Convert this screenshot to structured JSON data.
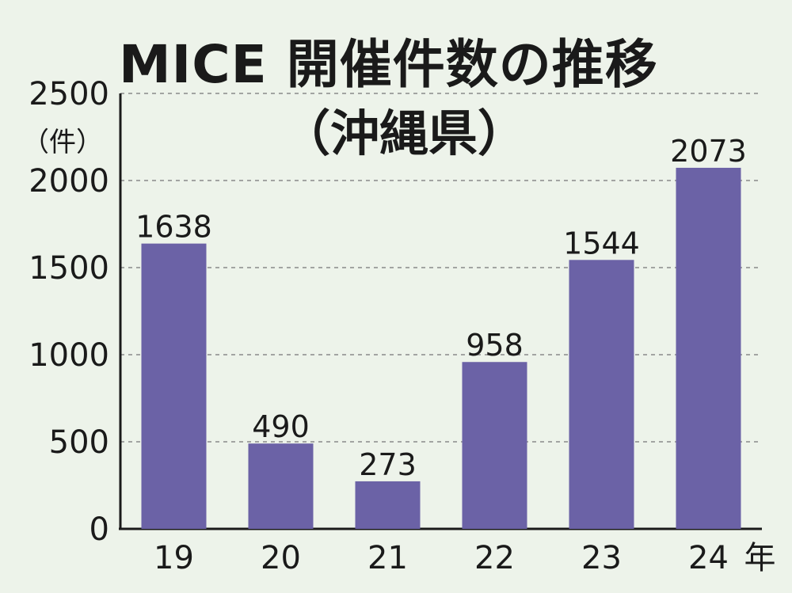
{
  "chart_data": {
    "type": "bar",
    "title": "MICE 開催件数の推移",
    "subtitle": "（沖縄県）",
    "ylabel": "（件）",
    "xlabel": "年",
    "categories": [
      "19",
      "20",
      "21",
      "22",
      "23",
      "24"
    ],
    "values": [
      1638,
      490,
      273,
      958,
      1544,
      2073
    ],
    "ylim": [
      0,
      2500
    ],
    "yticks": [
      0,
      500,
      1000,
      1500,
      2000,
      2500
    ],
    "grid": true,
    "bar_color": "#6b62a6",
    "background": "#edf3ea"
  }
}
